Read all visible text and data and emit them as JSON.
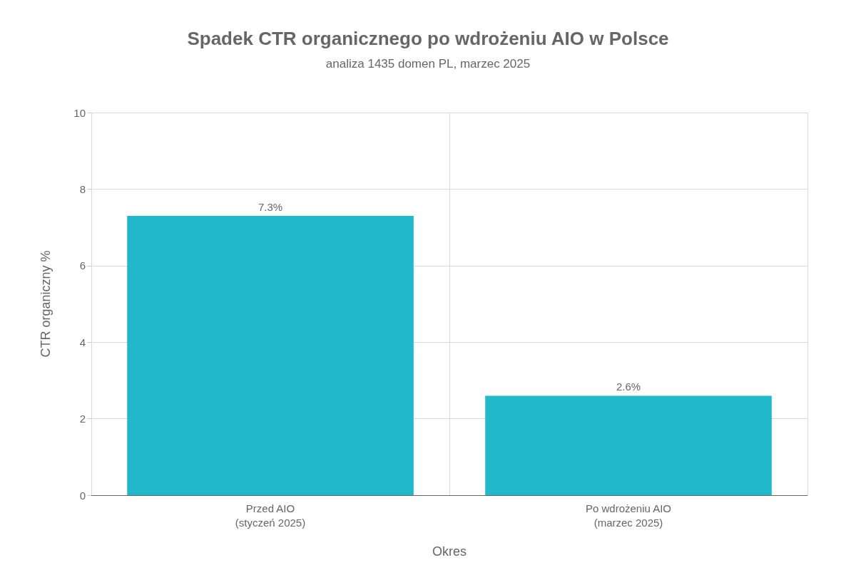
{
  "chart_data": {
    "type": "bar",
    "title": "Spadek CTR organicznego po wdrożeniu AIO w Polsce",
    "subtitle": "analiza 1435 domen PL, marzec 2025",
    "xlabel": "Okres",
    "ylabel": "CTR organiczny %",
    "categories": [
      "Przed AIO\n(styczeń 2025)",
      "Po wdrożeniu AIO\n(marzec 2025)"
    ],
    "values": [
      7.3,
      2.6
    ],
    "value_labels": [
      "7.3%",
      "2.6%"
    ],
    "color": "#21b8cc",
    "ylim": [
      0,
      10
    ],
    "yticks": [
      0,
      2,
      4,
      6,
      8,
      10
    ],
    "grid": true
  }
}
